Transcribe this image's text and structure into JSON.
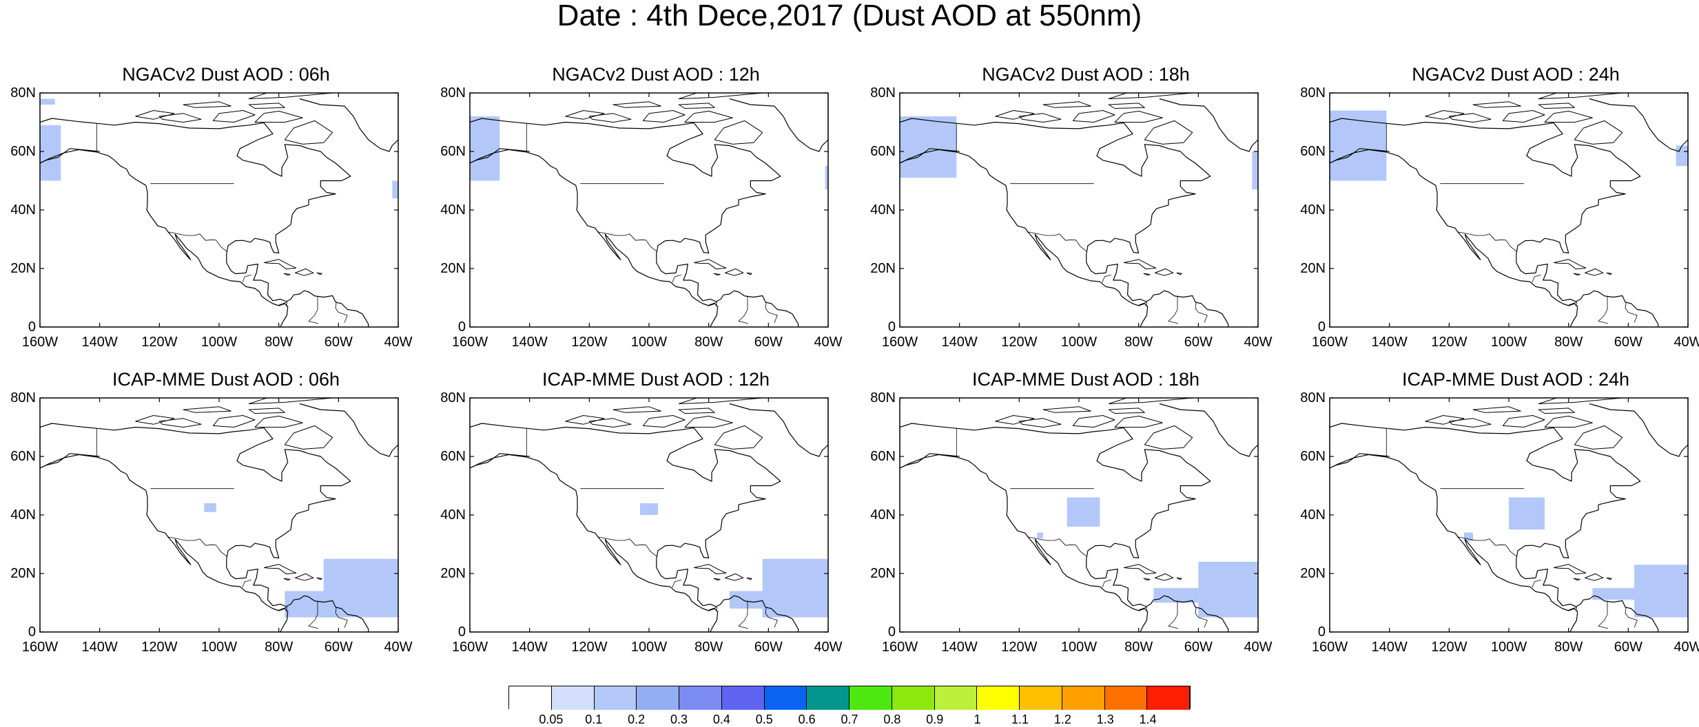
{
  "title": "Date : 4th Dece,2017 (Dust AOD at 550nm)",
  "axes": {
    "x_ticks": [
      "160W",
      "140W",
      "120W",
      "100W",
      "80W",
      "60W",
      "40W"
    ],
    "x_values": [
      -160,
      -140,
      -120,
      -100,
      -80,
      -60,
      -40
    ],
    "y_ticks": [
      "80N",
      "60N",
      "40N",
      "20N",
      "0"
    ],
    "y_values": [
      80,
      60,
      40,
      20,
      0
    ],
    "lon_range": [
      -160,
      -40
    ],
    "lat_range": [
      0,
      80
    ]
  },
  "panels": [
    {
      "title": "NGACv2 Dust AOD : 06h",
      "dust_patches": [
        {
          "lon": [
            -160,
            -153
          ],
          "lat": [
            50,
            69
          ],
          "aod": 0.1
        },
        {
          "lon": [
            -160,
            -155
          ],
          "lat": [
            76,
            78
          ],
          "aod": 0.1
        },
        {
          "lon": [
            -42,
            -40
          ],
          "lat": [
            44,
            50
          ],
          "aod": 0.1
        }
      ]
    },
    {
      "title": "NGACv2 Dust AOD : 12h",
      "dust_patches": [
        {
          "lon": [
            -160,
            -150
          ],
          "lat": [
            50,
            72
          ],
          "aod": 0.1
        },
        {
          "lon": [
            -41,
            -40
          ],
          "lat": [
            47,
            55
          ],
          "aod": 0.1
        }
      ]
    },
    {
      "title": "NGACv2 Dust AOD : 18h",
      "dust_patches": [
        {
          "lon": [
            -160,
            -141
          ],
          "lat": [
            51,
            72
          ],
          "aod": 0.1
        },
        {
          "lon": [
            -42,
            -40
          ],
          "lat": [
            47,
            60
          ],
          "aod": 0.1
        }
      ]
    },
    {
      "title": "NGACv2 Dust AOD : 24h",
      "dust_patches": [
        {
          "lon": [
            -160,
            -141
          ],
          "lat": [
            50,
            74
          ],
          "aod": 0.1
        },
        {
          "lon": [
            -44,
            -40
          ],
          "lat": [
            55,
            62
          ],
          "aod": 0.1
        }
      ]
    },
    {
      "title": "ICAP-MME Dust AOD : 06h",
      "dust_patches": [
        {
          "lon": [
            -65,
            -40
          ],
          "lat": [
            5,
            25
          ],
          "aod": 0.1
        },
        {
          "lon": [
            -78,
            -62
          ],
          "lat": [
            5,
            14
          ],
          "aod": 0.1
        },
        {
          "lon": [
            -105,
            -101
          ],
          "lat": [
            41,
            44
          ],
          "aod": 0.1
        }
      ]
    },
    {
      "title": "ICAP-MME Dust AOD : 12h",
      "dust_patches": [
        {
          "lon": [
            -62,
            -40
          ],
          "lat": [
            5,
            25
          ],
          "aod": 0.1
        },
        {
          "lon": [
            -73,
            -60
          ],
          "lat": [
            8,
            14
          ],
          "aod": 0.1
        },
        {
          "lon": [
            -103,
            -97
          ],
          "lat": [
            40,
            44
          ],
          "aod": 0.1
        }
      ]
    },
    {
      "title": "ICAP-MME Dust AOD : 18h",
      "dust_patches": [
        {
          "lon": [
            -60,
            -40
          ],
          "lat": [
            5,
            24
          ],
          "aod": 0.1
        },
        {
          "lon": [
            -75,
            -60
          ],
          "lat": [
            10,
            15
          ],
          "aod": 0.1
        },
        {
          "lon": [
            -104,
            -93
          ],
          "lat": [
            36,
            46
          ],
          "aod": 0.1
        },
        {
          "lon": [
            -114,
            -112
          ],
          "lat": [
            32,
            34
          ],
          "aod": 0.1
        }
      ]
    },
    {
      "title": "ICAP-MME Dust AOD : 24h",
      "dust_patches": [
        {
          "lon": [
            -58,
            -40
          ],
          "lat": [
            5,
            23
          ],
          "aod": 0.1
        },
        {
          "lon": [
            -72,
            -58
          ],
          "lat": [
            11,
            15
          ],
          "aod": 0.1
        },
        {
          "lon": [
            -100,
            -88
          ],
          "lat": [
            35,
            46
          ],
          "aod": 0.1
        },
        {
          "lon": [
            -115,
            -112
          ],
          "lat": [
            31,
            34
          ],
          "aod": 0.1
        }
      ]
    }
  ],
  "colorbar": {
    "labels": [
      "0.05",
      "0.1",
      "0.2",
      "0.3",
      "0.4",
      "0.5",
      "0.6",
      "0.7",
      "0.8",
      "0.9",
      "1",
      "1.1",
      "1.2",
      "1.3",
      "1.4"
    ],
    "colors": [
      "#ffffff",
      "#d4e0fb",
      "#b3c8f8",
      "#94aef4",
      "#7c8cf2",
      "#5e64f0",
      "#0a63f2",
      "#03968f",
      "#4de80f",
      "#8ce80f",
      "#bbf13a",
      "#ffff00",
      "#ffc000",
      "#ffa000",
      "#ff7000",
      "#ff1e00"
    ]
  }
}
